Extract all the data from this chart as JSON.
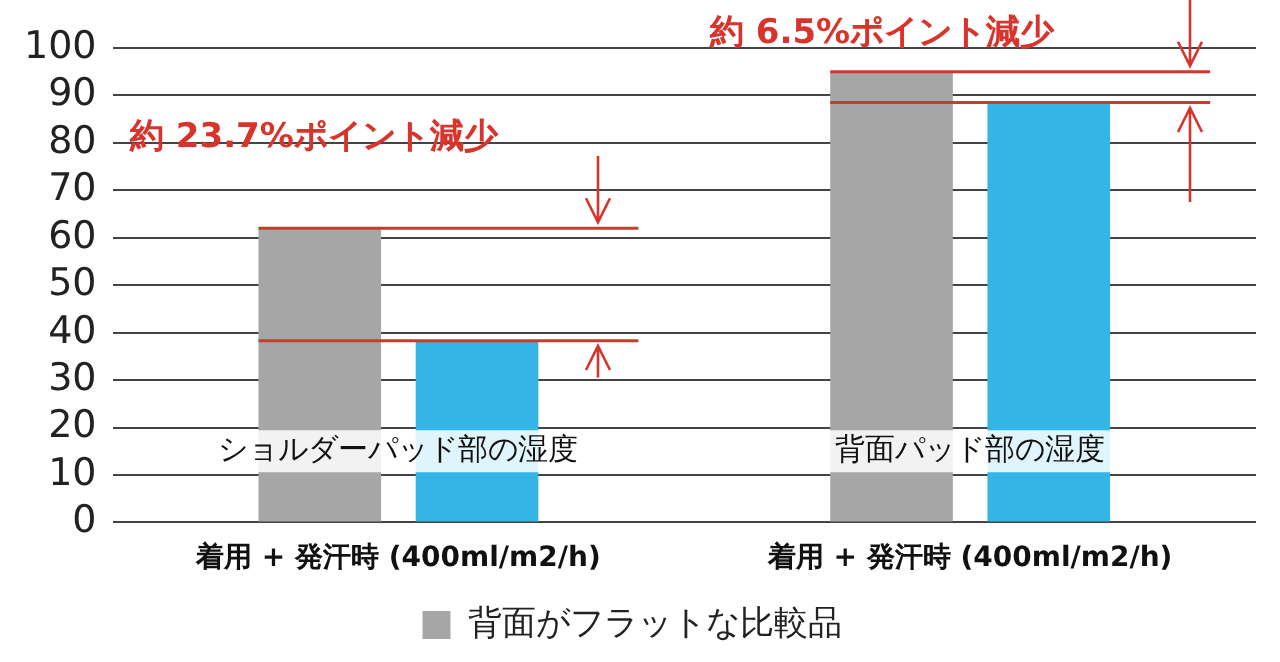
{
  "chart_data": {
    "type": "bar",
    "categories": [
      "着用 + 発汗時 (400ml/m2/h)",
      "着用 + 発汗時 (400ml/m2/h)"
    ],
    "series": [
      {
        "name": "背面がフラットな比較品",
        "color": "#a6a6a6",
        "values": [
          62,
          95
        ]
      },
      {
        "color": "#33b5e5",
        "values": [
          38.3,
          88.5
        ]
      }
    ],
    "ylim": [
      0,
      100
    ],
    "yticks": [
      0,
      10,
      20,
      30,
      40,
      50,
      60,
      70,
      80,
      90,
      100
    ],
    "grid": "y",
    "legend": "bottom",
    "ref_lines": [
      {
        "axis": "y",
        "value": 62,
        "color": "#d9342b"
      },
      {
        "axis": "y",
        "value": 38.3,
        "color": "#d9342b"
      },
      {
        "axis": "y",
        "value": 95,
        "color": "#d9342b"
      },
      {
        "axis": "y",
        "value": 88.5,
        "color": "#d9342b"
      }
    ],
    "annotations": [
      "約 23.7%ポイント減少",
      "約 6.5%ポイント減少",
      "ショルダーパッド部の湿度",
      "背面パッド部の湿度"
    ]
  }
}
